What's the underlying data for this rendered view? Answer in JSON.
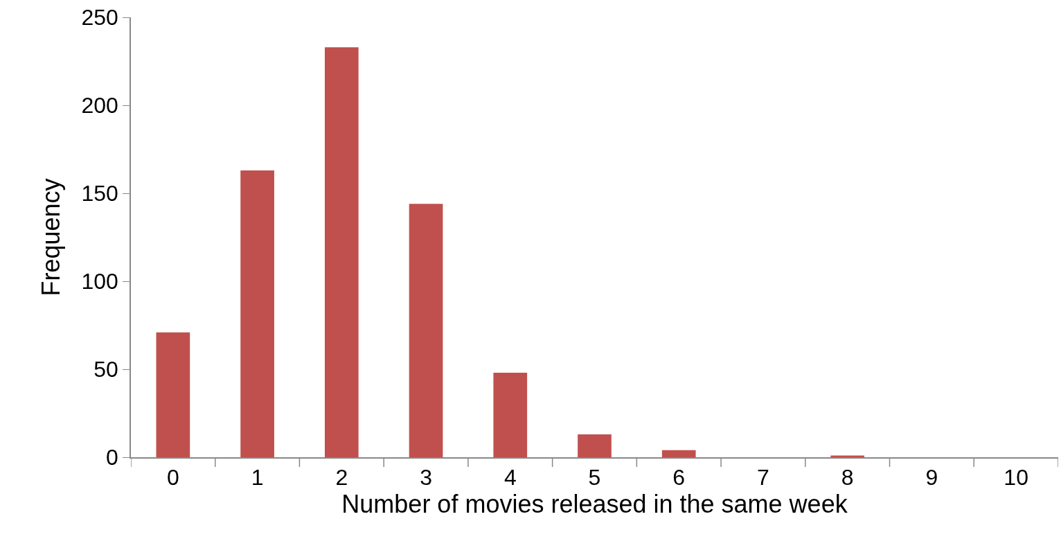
{
  "chart_data": {
    "type": "bar",
    "xlabel": "Number of movies released in the same week",
    "ylabel": "Frequency",
    "categories": [
      "0",
      "1",
      "2",
      "3",
      "4",
      "5",
      "6",
      "7",
      "8",
      "9",
      "10"
    ],
    "values": [
      71,
      163,
      233,
      144,
      48,
      13,
      4,
      0,
      1,
      0,
      0
    ],
    "color": "#c0504d",
    "ylim": [
      0,
      250
    ],
    "yticks": [
      0,
      50,
      100,
      150,
      200,
      250
    ]
  }
}
